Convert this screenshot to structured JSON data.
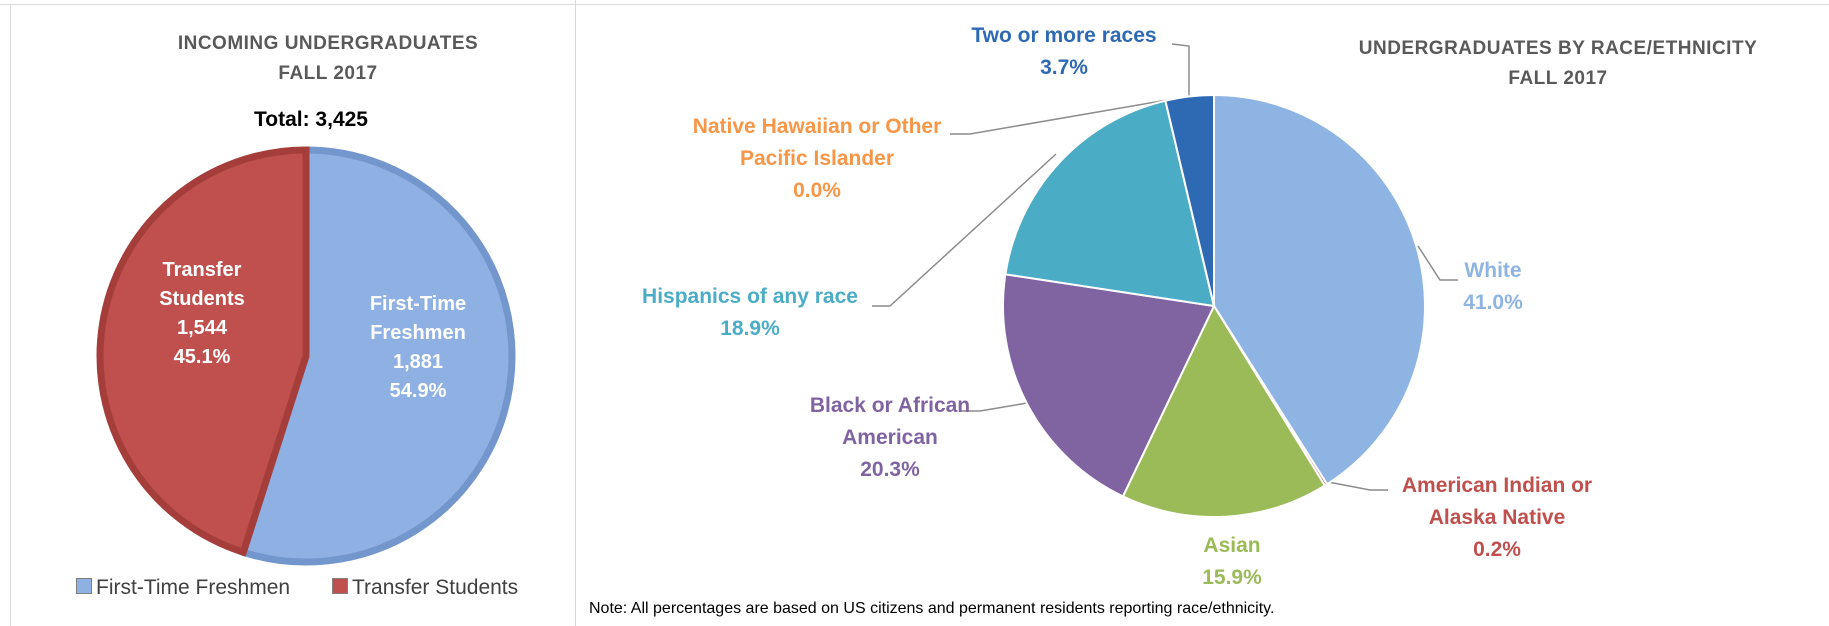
{
  "chart_data": [
    {
      "type": "pie",
      "title": [
        "INCOMING UNDERGRADUATES",
        "FALL 2017"
      ],
      "annotation": "Total: 3,425",
      "categories": [
        "First-Time Freshmen",
        "Transfer Students"
      ],
      "values": [
        1881,
        1544
      ],
      "value_labels": [
        "1,881",
        "1,544"
      ],
      "percents": [
        54.9,
        45.1
      ],
      "percent_labels": [
        "54.9%",
        "45.1%"
      ],
      "colors": [
        "#8eb0e3",
        "#c0504d"
      ],
      "legend": "bottom"
    },
    {
      "type": "pie",
      "title": [
        "UNDERGRADUATES BY RACE/ETHNICITY",
        "FALL 2017"
      ],
      "categories": [
        "White",
        "American Indian or Alaska Native",
        "Asian",
        "Black or African American",
        "Hispanics of any race",
        "Native Hawaiian or Other Pacific Islander",
        "Two or more races"
      ],
      "values": [
        41.0,
        0.2,
        15.9,
        20.3,
        18.9,
        0.0,
        3.7
      ],
      "value_labels": [
        "41.0%",
        "0.2%",
        "15.9%",
        "20.3%",
        "18.9%",
        "0.0%",
        "3.7%"
      ],
      "colors": [
        "#8eb4e3",
        "#c0504d",
        "#9bbb59",
        "#8064a2",
        "#4bacc6",
        "#f79646",
        "#2e6ab3"
      ],
      "note": "Note: All percentages are based on US citizens and permanent residents reporting race/ethnicity."
    }
  ]
}
